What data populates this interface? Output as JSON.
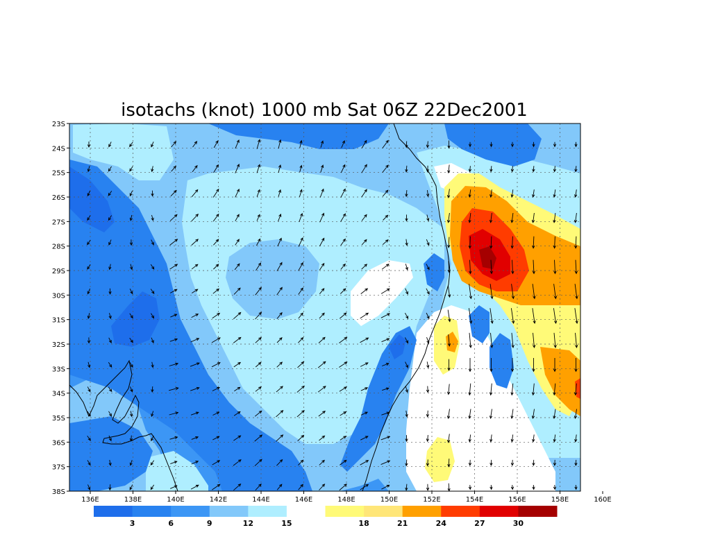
{
  "title": "isotachs (knot) 1000 mb Sat 06Z 22Dec2001",
  "lat_labels": [
    "23S",
    "24S",
    "25S",
    "26S",
    "27S",
    "28S",
    "29S",
    "30S",
    "31S",
    "32S",
    "33S",
    "34S",
    "35S",
    "36S",
    "37S",
    "38S"
  ],
  "lon_labels": [
    "136E",
    "138E",
    "140E",
    "142E",
    "144E",
    "146E",
    "148E",
    "150E",
    "152E",
    "154E",
    "156E",
    "158E",
    "160E"
  ],
  "colorbar": {
    "colors": [
      "#1e6eeb",
      "#2882f0",
      "#3c96f5",
      "#82c8fa",
      "#afeeff",
      "#ffffff",
      "#fffa78",
      "#ffe678",
      "#ffa000",
      "#ff3c00",
      "#e10000",
      "#a50000"
    ],
    "labels": [
      "3",
      "6",
      "9",
      "12",
      "15",
      "18",
      "21",
      "24",
      "27",
      "30"
    ]
  },
  "map": {
    "background_color": "#ffffff",
    "coast_color": "#000000",
    "vector_color": "#000000"
  }
}
